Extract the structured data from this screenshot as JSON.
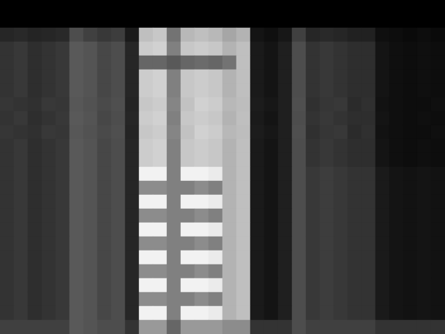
{
  "chart_data": {
    "type": "heatmap",
    "color": "gray",
    "tick_labels": false,
    "zlim": [
      0,
      100
    ],
    "values": [
      [
        0,
        0,
        0,
        0,
        0,
        0,
        0,
        0,
        0,
        0,
        0,
        0,
        0,
        0,
        0,
        0,
        0,
        0,
        0,
        0,
        0,
        0,
        0,
        0,
        0,
        0,
        0,
        0,
        0,
        0,
        0,
        0
      ],
      [
        0,
        0,
        0,
        0,
        0,
        0,
        0,
        0,
        0,
        0,
        0,
        0,
        0,
        0,
        0,
        0,
        0,
        0,
        0,
        0,
        0,
        0,
        0,
        0,
        0,
        0,
        0,
        0,
        0,
        0,
        0,
        0
      ],
      [
        15,
        16,
        14,
        15,
        16,
        30,
        25,
        22,
        24,
        10,
        75,
        78,
        45,
        72,
        75,
        72,
        65,
        70,
        8,
        6,
        9,
        25,
        15,
        16,
        15,
        13,
        13,
        6,
        5,
        4,
        5,
        4
      ],
      [
        20,
        22,
        18,
        20,
        22,
        35,
        33,
        28,
        30,
        15,
        80,
        82,
        50,
        78,
        80,
        78,
        70,
        75,
        10,
        8,
        12,
        30,
        20,
        22,
        20,
        18,
        18,
        8,
        6,
        5,
        6,
        5
      ],
      [
        20,
        22,
        18,
        20,
        22,
        35,
        33,
        28,
        30,
        15,
        40,
        40,
        35,
        40,
        42,
        40,
        45,
        75,
        10,
        8,
        12,
        30,
        20,
        22,
        20,
        18,
        18,
        8,
        6,
        5,
        6,
        5
      ],
      [
        20,
        22,
        18,
        20,
        22,
        35,
        33,
        28,
        30,
        15,
        80,
        82,
        50,
        78,
        80,
        78,
        70,
        75,
        10,
        8,
        12,
        30,
        20,
        22,
        20,
        18,
        18,
        8,
        6,
        5,
        6,
        5
      ],
      [
        20,
        22,
        18,
        20,
        22,
        35,
        33,
        28,
        30,
        15,
        80,
        82,
        50,
        78,
        80,
        78,
        70,
        75,
        10,
        8,
        12,
        30,
        20,
        22,
        20,
        18,
        18,
        8,
        6,
        5,
        6,
        5
      ],
      [
        21,
        20,
        19,
        22,
        21,
        34,
        32,
        29,
        31,
        14,
        78,
        80,
        52,
        76,
        82,
        80,
        72,
        74,
        11,
        9,
        12,
        31,
        19,
        21,
        22,
        17,
        19,
        7,
        6,
        5,
        5,
        6
      ],
      [
        20,
        22,
        18,
        20,
        22,
        35,
        33,
        28,
        30,
        15,
        80,
        82,
        50,
        78,
        80,
        78,
        70,
        75,
        10,
        8,
        12,
        30,
        20,
        22,
        20,
        18,
        18,
        8,
        6,
        5,
        6,
        5
      ],
      [
        21,
        20,
        19,
        22,
        21,
        34,
        32,
        29,
        31,
        14,
        78,
        80,
        52,
        76,
        82,
        80,
        72,
        74,
        11,
        9,
        12,
        31,
        19,
        21,
        22,
        17,
        19,
        7,
        6,
        5,
        5,
        6
      ],
      [
        20,
        22,
        18,
        20,
        22,
        35,
        33,
        28,
        30,
        15,
        80,
        82,
        50,
        78,
        80,
        78,
        70,
        75,
        10,
        8,
        12,
        30,
        20,
        22,
        20,
        18,
        18,
        8,
        6,
        5,
        6,
        5
      ],
      [
        20,
        22,
        18,
        20,
        22,
        35,
        33,
        28,
        30,
        15,
        80,
        82,
        50,
        78,
        80,
        78,
        70,
        75,
        10,
        8,
        12,
        30,
        20,
        22,
        20,
        18,
        18,
        8,
        6,
        5,
        6,
        5
      ],
      [
        20,
        22,
        18,
        20,
        22,
        35,
        33,
        28,
        30,
        15,
        95,
        95,
        50,
        95,
        95,
        92,
        70,
        75,
        10,
        8,
        12,
        30,
        22,
        24,
        22,
        20,
        20,
        10,
        8,
        7,
        8,
        7
      ],
      [
        20,
        22,
        18,
        20,
        22,
        35,
        33,
        28,
        30,
        15,
        55,
        55,
        50,
        50,
        55,
        50,
        70,
        75,
        10,
        8,
        12,
        30,
        22,
        24,
        22,
        20,
        20,
        10,
        8,
        7,
        8,
        7
      ],
      [
        20,
        22,
        18,
        20,
        22,
        35,
        33,
        28,
        30,
        15,
        95,
        95,
        50,
        95,
        95,
        92,
        70,
        75,
        10,
        8,
        12,
        30,
        22,
        24,
        22,
        20,
        20,
        10,
        8,
        7,
        8,
        7
      ],
      [
        20,
        22,
        18,
        20,
        22,
        35,
        33,
        28,
        30,
        15,
        55,
        55,
        50,
        50,
        55,
        50,
        70,
        75,
        10,
        8,
        12,
        30,
        22,
        24,
        22,
        20,
        20,
        10,
        8,
        7,
        8,
        7
      ],
      [
        20,
        22,
        18,
        20,
        22,
        35,
        33,
        28,
        30,
        15,
        95,
        95,
        50,
        95,
        95,
        92,
        70,
        75,
        10,
        8,
        12,
        30,
        22,
        24,
        22,
        20,
        20,
        10,
        8,
        7,
        8,
        7
      ],
      [
        20,
        22,
        18,
        20,
        22,
        35,
        33,
        28,
        30,
        15,
        55,
        55,
        50,
        50,
        55,
        50,
        70,
        75,
        10,
        8,
        12,
        30,
        22,
        24,
        22,
        20,
        20,
        10,
        8,
        7,
        8,
        7
      ],
      [
        20,
        22,
        18,
        20,
        22,
        35,
        33,
        28,
        30,
        15,
        95,
        95,
        50,
        95,
        95,
        92,
        70,
        75,
        10,
        8,
        12,
        30,
        22,
        24,
        22,
        20,
        20,
        10,
        8,
        7,
        8,
        7
      ],
      [
        20,
        22,
        18,
        20,
        22,
        35,
        33,
        28,
        30,
        15,
        55,
        55,
        50,
        50,
        55,
        50,
        70,
        75,
        10,
        8,
        12,
        30,
        22,
        24,
        22,
        20,
        20,
        10,
        8,
        7,
        8,
        7
      ],
      [
        20,
        22,
        18,
        20,
        22,
        35,
        33,
        28,
        30,
        15,
        95,
        95,
        50,
        95,
        95,
        92,
        70,
        75,
        10,
        8,
        12,
        30,
        22,
        24,
        22,
        20,
        20,
        10,
        8,
        7,
        8,
        7
      ],
      [
        20,
        22,
        18,
        20,
        22,
        35,
        33,
        28,
        30,
        15,
        55,
        55,
        50,
        50,
        55,
        50,
        70,
        75,
        10,
        8,
        12,
        30,
        22,
        24,
        22,
        20,
        20,
        10,
        8,
        7,
        8,
        7
      ],
      [
        20,
        22,
        18,
        20,
        22,
        35,
        33,
        28,
        30,
        15,
        95,
        95,
        50,
        95,
        95,
        92,
        70,
        75,
        10,
        8,
        12,
        30,
        22,
        24,
        22,
        20,
        20,
        10,
        8,
        7,
        8,
        7
      ],
      [
        25,
        25,
        25,
        25,
        25,
        35,
        33,
        30,
        30,
        20,
        60,
        60,
        40,
        60,
        60,
        60,
        55,
        55,
        20,
        20,
        20,
        30,
        25,
        25,
        25,
        25,
        25,
        20,
        20,
        20,
        20,
        20
      ]
    ]
  }
}
